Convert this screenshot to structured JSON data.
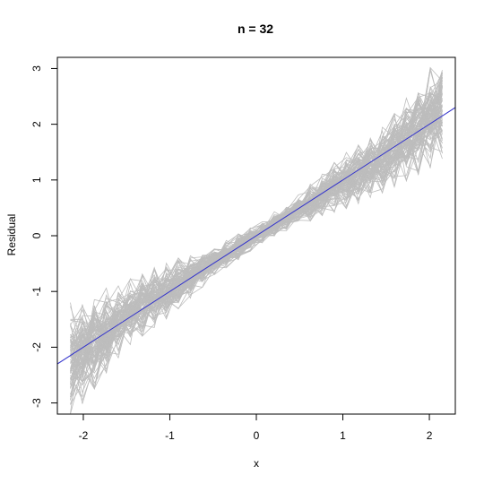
{
  "chart_data": {
    "type": "line",
    "title": "n = 32",
    "xlabel": "x",
    "ylabel": "Residual",
    "xlim": [
      -2.3,
      2.3
    ],
    "ylim": [
      -3.2,
      3.2
    ],
    "xticks": [
      -2,
      -1,
      0,
      1,
      2
    ],
    "xtick_labels": [
      "-2",
      "-1",
      "0",
      "1",
      "2"
    ],
    "yticks": [
      -3,
      -2,
      -1,
      0,
      1,
      2,
      3
    ],
    "ytick_labels": [
      "-3",
      "-2",
      "-1",
      "0",
      "1",
      "2",
      "3"
    ],
    "grid": false,
    "reference_line": {
      "intercept": 0,
      "slope": 1,
      "color": "#3333cc"
    },
    "envelope": {
      "x": [
        -2.15,
        -2.0,
        -1.5,
        -1.0,
        -0.5,
        0.0,
        0.5,
        1.0,
        1.5,
        2.0,
        2.15
      ],
      "upper": [
        -1.2,
        -1.1,
        -0.8,
        -0.45,
        -0.2,
        0.2,
        0.75,
        1.45,
        2.0,
        3.0,
        3.2
      ],
      "lower": [
        -3.2,
        -3.0,
        -2.0,
        -1.45,
        -0.75,
        -0.2,
        0.2,
        0.45,
        0.8,
        1.2,
        1.25
      ]
    },
    "simulated_series_count": 100,
    "colors": {
      "series": "#bdbdbd",
      "reference": "#3333cc",
      "axis": "#000000"
    }
  }
}
